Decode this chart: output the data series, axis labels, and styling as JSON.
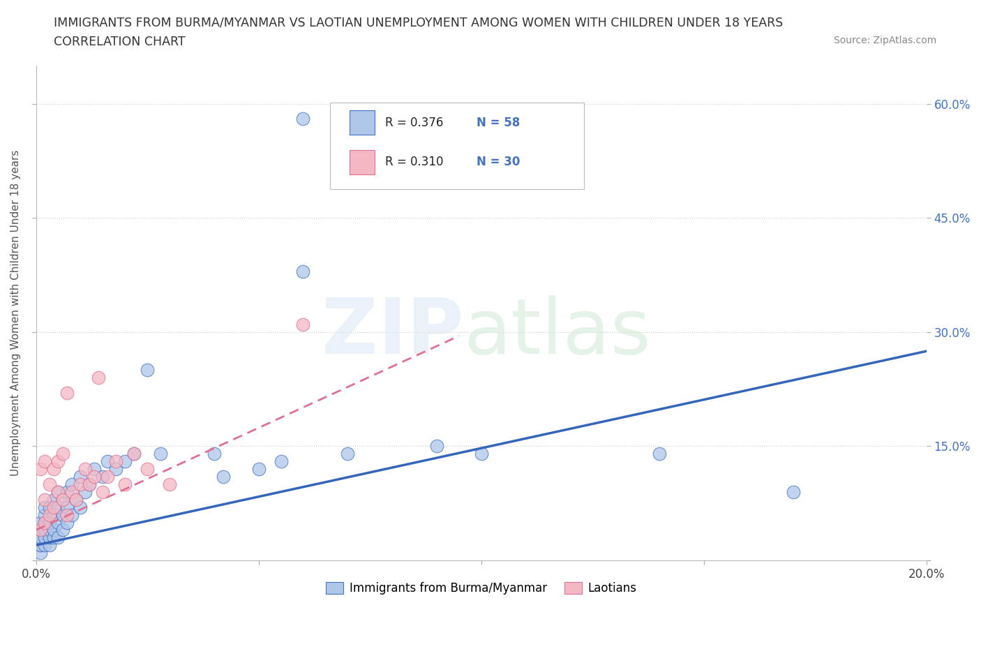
{
  "title_line1": "IMMIGRANTS FROM BURMA/MYANMAR VS LAOTIAN UNEMPLOYMENT AMONG WOMEN WITH CHILDREN UNDER 18 YEARS",
  "title_line2": "CORRELATION CHART",
  "source": "Source: ZipAtlas.com",
  "ylabel": "Unemployment Among Women with Children Under 18 years",
  "xlim": [
    0.0,
    0.2
  ],
  "ylim": [
    0.0,
    0.65
  ],
  "xticks": [
    0.0,
    0.05,
    0.1,
    0.15,
    0.2
  ],
  "xtick_labels": [
    "0.0%",
    "",
    "",
    "",
    "20.0%"
  ],
  "yticks": [
    0.0,
    0.15,
    0.3,
    0.45,
    0.6
  ],
  "ytick_labels": [
    "",
    "15.0%",
    "30.0%",
    "45.0%",
    "60.0%"
  ],
  "burma_color": "#aec6e8",
  "laos_color": "#f4b8c4",
  "burma_edge_color": "#4472c4",
  "laos_edge_color": "#e07090",
  "burma_line_color": "#3366bb",
  "laos_line_color": "#e07090",
  "legend_R_burma": "0.376",
  "legend_N_burma": "58",
  "legend_R_laos": "0.310",
  "legend_N_laos": "30",
  "burma_scatter_x": [
    0.001,
    0.001,
    0.001,
    0.001,
    0.001,
    0.001,
    0.001,
    0.002,
    0.002,
    0.002,
    0.002,
    0.002,
    0.002,
    0.003,
    0.003,
    0.003,
    0.003,
    0.003,
    0.004,
    0.004,
    0.004,
    0.004,
    0.005,
    0.005,
    0.005,
    0.005,
    0.006,
    0.006,
    0.006,
    0.007,
    0.007,
    0.007,
    0.008,
    0.008,
    0.009,
    0.01,
    0.01,
    0.011,
    0.012,
    0.013,
    0.015,
    0.016,
    0.018,
    0.02,
    0.022,
    0.025,
    0.028,
    0.04,
    0.042,
    0.05,
    0.055,
    0.06,
    0.07,
    0.09,
    0.1,
    0.14,
    0.17,
    0.06
  ],
  "burma_scatter_y": [
    0.01,
    0.02,
    0.02,
    0.03,
    0.03,
    0.04,
    0.05,
    0.02,
    0.03,
    0.04,
    0.05,
    0.06,
    0.07,
    0.02,
    0.03,
    0.04,
    0.05,
    0.07,
    0.03,
    0.04,
    0.06,
    0.08,
    0.03,
    0.05,
    0.07,
    0.09,
    0.04,
    0.06,
    0.08,
    0.05,
    0.07,
    0.09,
    0.06,
    0.1,
    0.08,
    0.07,
    0.11,
    0.09,
    0.1,
    0.12,
    0.11,
    0.13,
    0.12,
    0.13,
    0.14,
    0.25,
    0.14,
    0.14,
    0.11,
    0.12,
    0.13,
    0.38,
    0.14,
    0.15,
    0.14,
    0.14,
    0.09,
    0.58
  ],
  "laos_scatter_x": [
    0.001,
    0.001,
    0.002,
    0.002,
    0.002,
    0.003,
    0.003,
    0.004,
    0.004,
    0.005,
    0.005,
    0.006,
    0.006,
    0.007,
    0.007,
    0.008,
    0.009,
    0.01,
    0.011,
    0.012,
    0.013,
    0.014,
    0.015,
    0.016,
    0.018,
    0.02,
    0.022,
    0.025,
    0.03,
    0.06
  ],
  "laos_scatter_y": [
    0.04,
    0.12,
    0.05,
    0.08,
    0.13,
    0.06,
    0.1,
    0.07,
    0.12,
    0.09,
    0.13,
    0.08,
    0.14,
    0.22,
    0.06,
    0.09,
    0.08,
    0.1,
    0.12,
    0.1,
    0.11,
    0.24,
    0.09,
    0.11,
    0.13,
    0.1,
    0.14,
    0.12,
    0.1,
    0.31
  ],
  "burma_trend_x": [
    0.0,
    0.2
  ],
  "burma_trend_y": [
    0.02,
    0.275
  ],
  "laos_trend_x": [
    0.0,
    0.095
  ],
  "laos_trend_y": [
    0.04,
    0.295
  ]
}
